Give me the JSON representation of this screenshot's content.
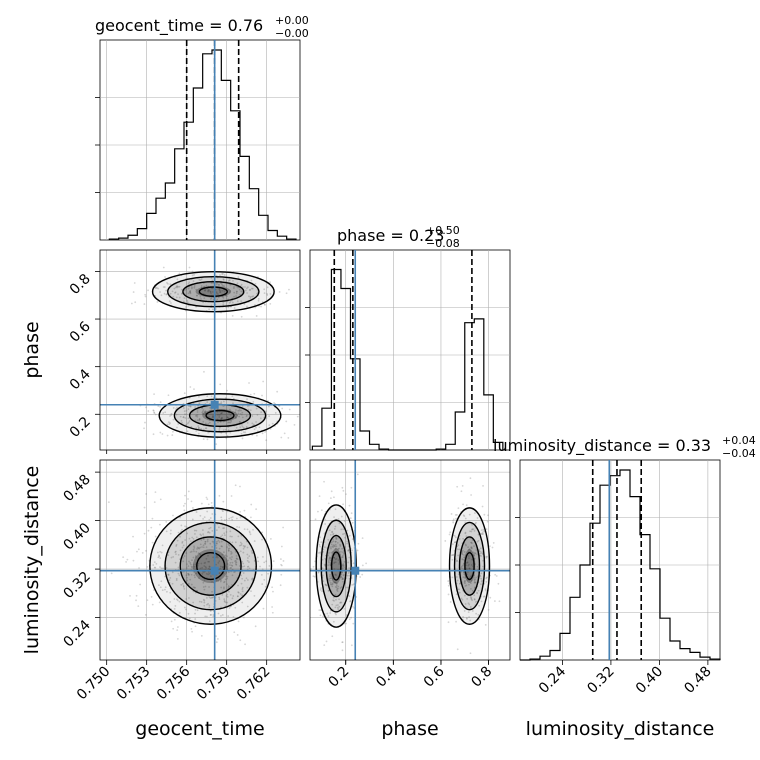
{
  "chart_data": {
    "type": "corner",
    "parameters": [
      "geocent_time",
      "phase",
      "luminosity_distance"
    ],
    "truths": {
      "geocent_time": 0.7581,
      "phase": 0.24,
      "luminosity_distance": 0.3173
    },
    "panel_titles": {
      "geocent_time": {
        "text": "geocent_time = 0.76",
        "sup": "+0.00",
        "sub": "−0.00"
      },
      "phase": {
        "text": "phase = 0.23",
        "sup": "+0.50",
        "sub": "−0.08"
      },
      "luminosity_distance": {
        "text": "luminosity_distance = 0.33",
        "sup": "+0.04",
        "sub": "−0.04"
      }
    },
    "axes": {
      "geocent_time": {
        "label": "geocent_time",
        "range": [
          0.7495,
          0.7645
        ],
        "ticks": [
          0.75,
          0.753,
          0.756,
          0.759,
          0.762
        ],
        "tick_labels": [
          "0.750",
          "0.753",
          "0.756",
          "0.759",
          "0.762"
        ]
      },
      "phase": {
        "label": "phase",
        "range": [
          0.05,
          0.89
        ],
        "ticks": [
          0.2,
          0.4,
          0.6,
          0.8
        ],
        "tick_labels": [
          "0.2",
          "0.4",
          "0.6",
          "0.8"
        ]
      },
      "luminosity_distance": {
        "label": "luminosity_distance",
        "range": [
          0.17,
          0.5
        ],
        "ticks": [
          0.24,
          0.32,
          0.4,
          0.48
        ],
        "tick_labels": [
          "0.24",
          "0.32",
          "0.40",
          "0.48"
        ]
      }
    },
    "histograms": {
      "geocent_time": {
        "edges": [
          0.7502,
          0.7509,
          0.7516,
          0.7523,
          0.753,
          0.7537,
          0.7544,
          0.7551,
          0.7558,
          0.7565,
          0.7572,
          0.7579,
          0.7586,
          0.7593,
          0.76,
          0.7607,
          0.7614,
          0.7621,
          0.7628,
          0.7635,
          0.7642
        ],
        "counts": [
          0.005,
          0.01,
          0.025,
          0.06,
          0.14,
          0.22,
          0.3,
          0.48,
          0.62,
          0.8,
          0.98,
          1.0,
          0.84,
          0.68,
          0.44,
          0.27,
          0.13,
          0.05,
          0.02,
          0.005
        ],
        "quantiles": [
          0.756,
          0.7581,
          0.7599
        ]
      },
      "phase": {
        "edges": [
          0.06,
          0.1,
          0.14,
          0.18,
          0.22,
          0.26,
          0.3,
          0.34,
          0.38,
          0.42,
          0.46,
          0.5,
          0.54,
          0.58,
          0.62,
          0.66,
          0.7,
          0.74,
          0.78,
          0.82,
          0.86
        ],
        "counts": [
          0.02,
          0.22,
          0.95,
          0.85,
          0.48,
          0.1,
          0.03,
          0.005,
          0,
          0,
          0,
          0,
          0,
          0.005,
          0.03,
          0.2,
          0.67,
          0.69,
          0.29,
          0.04
        ],
        "quantiles": [
          0.152,
          0.23,
          0.73
        ]
      },
      "luminosity_distance": {
        "edges": [
          0.17,
          0.1865,
          0.203,
          0.2195,
          0.236,
          0.2525,
          0.269,
          0.2855,
          0.302,
          0.3185,
          0.335,
          0.3515,
          0.368,
          0.3845,
          0.401,
          0.4175,
          0.434,
          0.4505,
          0.467,
          0.4835,
          0.5
        ],
        "counts": [
          0,
          0.005,
          0.02,
          0.05,
          0.14,
          0.33,
          0.5,
          0.72,
          0.92,
          0.97,
          1.0,
          0.86,
          0.66,
          0.48,
          0.22,
          0.1,
          0.06,
          0.04,
          0.015,
          0.005
        ],
        "quantiles": [
          0.29,
          0.33,
          0.37
        ]
      }
    },
    "posterior_modes": {
      "geocent_time_vs_phase": [
        {
          "mean": [
            0.758,
            0.715
          ],
          "sd": [
            0.0019,
            0.035
          ],
          "weight": 0.47
        },
        {
          "mean": [
            0.7585,
            0.195
          ],
          "sd": [
            0.0019,
            0.038
          ],
          "weight": 0.53
        }
      ],
      "geocent_time_vs_luminosity_distance": [
        {
          "mean": [
            0.7578,
            0.325
          ],
          "sd": [
            0.0019,
            0.04
          ],
          "weight": 1.0
        }
      ],
      "phase_vs_luminosity_distance": [
        {
          "mean": [
            0.16,
            0.325
          ],
          "sd": [
            0.035,
            0.042
          ],
          "weight": 0.52
        },
        {
          "mean": [
            0.72,
            0.325
          ],
          "sd": [
            0.035,
            0.04
          ],
          "weight": 0.48
        }
      ]
    },
    "colors": {
      "truth": "#4682b4",
      "contour": "#000000",
      "grid": "#b0b0b0",
      "samples": "#8a8a8a"
    },
    "grid": true
  }
}
